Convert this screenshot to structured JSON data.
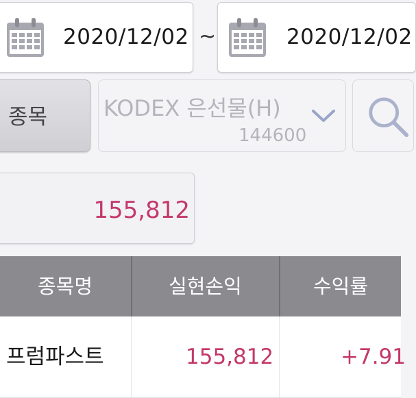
{
  "date_range": {
    "start_date": "2020/12/02",
    "separator": "~",
    "end_date": "2020/12/02"
  },
  "stock_filter": {
    "label": "종목",
    "selected_name": "KODEX 은선물(H)",
    "selected_code": "144600"
  },
  "total": {
    "value": "155,812"
  },
  "table": {
    "headers": [
      "종목명",
      "실현손익",
      "수익률"
    ],
    "rows": [
      {
        "name": "프럼파스트",
        "profit": "155,812",
        "rate": "+7.91"
      }
    ]
  },
  "colors": {
    "accent_red": "#c3386a",
    "header_gray": "#8a8a8f",
    "icon_gray": "#a8a8b0",
    "chevron_blue": "#9aa6c8"
  }
}
